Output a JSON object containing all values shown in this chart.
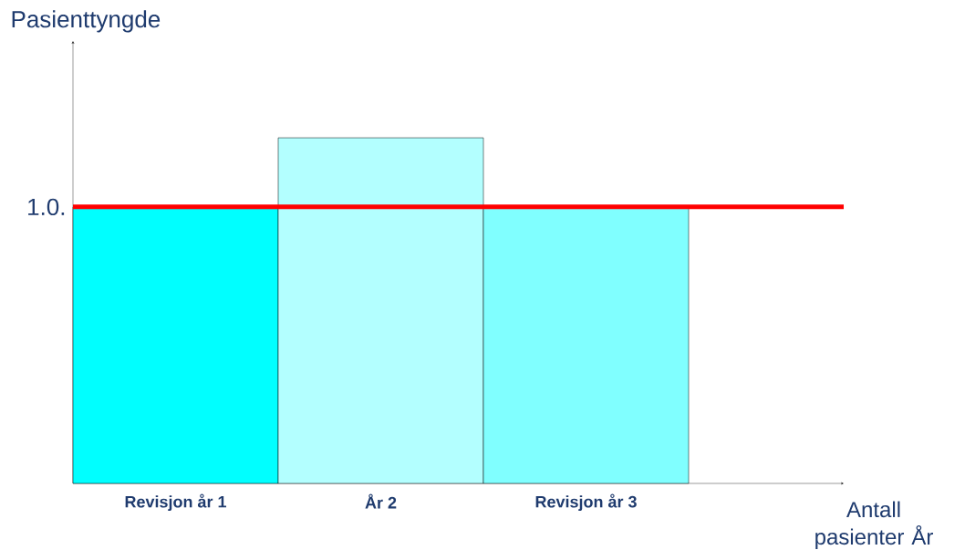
{
  "chart_data": {
    "type": "bar",
    "ylabel": "Pasienttyngde",
    "xlabel": "Antall pasienter År",
    "categories": [
      "Revisjon år 1",
      "År 2",
      "Revisjon år 3"
    ],
    "values": [
      1,
      1.25,
      1
    ],
    "colors": [
      "#00ffff",
      "#b3ffff",
      "#80ffff"
    ],
    "ylim": [
      0,
      1.6
    ],
    "yticks": [
      {
        "value": 1,
        "label": "1.0."
      }
    ],
    "ref_lines": [
      {
        "axis": "y",
        "value": 1,
        "color": "#ff0000"
      }
    ]
  }
}
